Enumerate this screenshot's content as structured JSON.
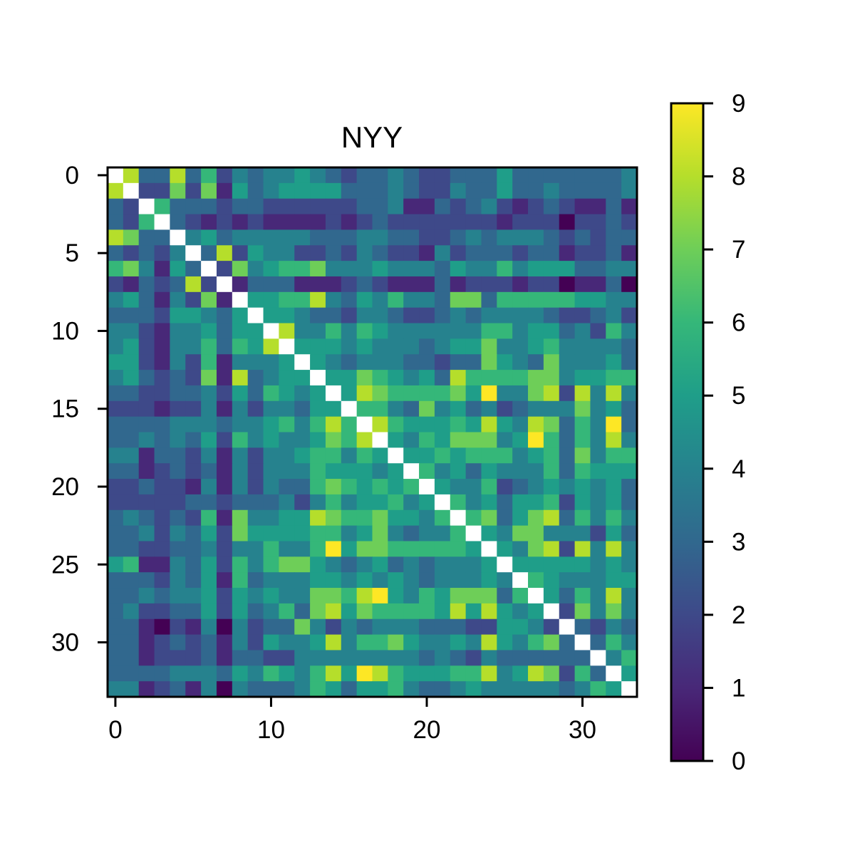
{
  "chart_data": {
    "type": "heatmap",
    "title": "NYY",
    "xlabel": "",
    "ylabel": "",
    "n": 34,
    "diagonal": "blank",
    "x_ticks": [
      0,
      10,
      20,
      30
    ],
    "y_ticks": [
      0,
      5,
      10,
      15,
      20,
      25,
      30
    ],
    "colorbar": {
      "colormap": "viridis",
      "vmin": 0,
      "vmax": 9,
      "ticks": [
        0,
        1,
        2,
        3,
        4,
        5,
        6,
        7,
        8,
        9
      ]
    },
    "rows": [
      [
        null,
        8,
        3,
        3,
        8,
        3,
        6,
        2,
        4,
        3,
        4,
        4,
        5,
        4,
        3,
        2,
        3,
        3,
        4,
        3,
        2,
        2,
        3,
        3,
        3,
        5,
        3,
        3,
        3,
        3,
        3,
        3,
        3,
        4
      ],
      [
        8,
        null,
        2,
        2,
        7,
        2,
        7,
        1,
        5,
        3,
        4,
        5,
        5,
        5,
        5,
        3,
        3,
        3,
        4,
        3,
        2,
        2,
        4,
        3,
        3,
        5,
        3,
        3,
        4,
        3,
        3,
        3,
        3,
        4
      ],
      [
        3,
        2,
        null,
        6,
        3,
        3,
        3,
        2,
        3,
        3,
        2,
        2,
        2,
        2,
        2,
        2,
        3,
        3,
        4,
        1,
        1,
        3,
        2,
        3,
        4,
        2,
        1,
        2,
        3,
        2,
        1,
        1,
        3,
        1
      ],
      [
        3,
        2,
        6,
        null,
        3,
        2,
        1,
        2,
        1,
        2,
        1,
        1,
        1,
        1,
        2,
        1,
        2,
        3,
        2,
        2,
        2,
        2,
        2,
        2,
        2,
        1,
        2,
        2,
        2,
        0,
        2,
        2,
        3,
        2
      ],
      [
        8,
        7,
        3,
        3,
        null,
        4,
        5,
        3,
        4,
        4,
        4,
        4,
        4,
        3,
        3,
        3,
        4,
        4,
        3,
        3,
        2,
        2,
        3,
        4,
        3,
        4,
        4,
        4,
        3,
        2,
        3,
        2,
        3,
        3
      ],
      [
        3,
        2,
        3,
        2,
        4,
        null,
        3,
        8,
        2,
        5,
        4,
        4,
        2,
        2,
        3,
        2,
        4,
        3,
        2,
        2,
        1,
        4,
        2,
        3,
        3,
        3,
        2,
        3,
        3,
        1,
        2,
        2,
        3,
        1
      ],
      [
        6,
        7,
        4,
        1,
        5,
        3,
        null,
        2,
        7,
        4,
        5,
        6,
        6,
        7,
        4,
        4,
        4,
        5,
        4,
        4,
        4,
        3,
        5,
        4,
        4,
        6,
        4,
        5,
        5,
        5,
        3,
        3,
        4,
        4
      ],
      [
        2,
        1,
        3,
        2,
        3,
        8,
        2,
        null,
        1,
        3,
        3,
        3,
        1,
        1,
        1,
        2,
        3,
        2,
        1,
        1,
        1,
        3,
        1,
        2,
        2,
        2,
        1,
        2,
        2,
        0,
        1,
        1,
        3,
        0
      ],
      [
        4,
        5,
        3,
        1,
        4,
        2,
        7,
        1,
        null,
        5,
        5,
        6,
        6,
        8,
        4,
        3,
        5,
        4,
        6,
        4,
        4,
        3,
        7,
        7,
        3,
        6,
        6,
        6,
        6,
        6,
        5,
        5,
        4,
        4
      ],
      [
        3,
        3,
        3,
        2,
        5,
        5,
        4,
        3,
        5,
        null,
        5,
        5,
        4,
        3,
        3,
        2,
        4,
        4,
        3,
        2,
        2,
        3,
        4,
        3,
        4,
        4,
        4,
        4,
        3,
        2,
        2,
        3,
        4,
        2
      ],
      [
        4,
        4,
        2,
        1,
        4,
        4,
        5,
        3,
        5,
        5,
        null,
        8,
        4,
        4,
        6,
        4,
        6,
        5,
        4,
        4,
        4,
        4,
        4,
        4,
        6,
        6,
        4,
        5,
        5,
        3,
        4,
        2,
        6,
        4
      ],
      [
        4,
        5,
        2,
        1,
        4,
        4,
        6,
        3,
        6,
        5,
        8,
        null,
        5,
        5,
        5,
        4,
        5,
        4,
        4,
        4,
        3,
        4,
        5,
        5,
        7,
        4,
        4,
        5,
        6,
        4,
        4,
        4,
        4,
        3
      ],
      [
        5,
        5,
        2,
        1,
        4,
        2,
        6,
        1,
        4,
        4,
        4,
        5,
        null,
        5,
        4,
        3,
        4,
        4,
        4,
        3,
        3,
        2,
        3,
        3,
        7,
        5,
        4,
        3,
        7,
        4,
        4,
        4,
        5,
        3
      ],
      [
        4,
        5,
        3,
        2,
        3,
        2,
        7,
        1,
        8,
        3,
        4,
        5,
        5,
        null,
        5,
        5,
        7,
        6,
        5,
        4,
        5,
        3,
        8,
        6,
        6,
        6,
        6,
        7,
        7,
        4,
        5,
        5,
        6,
        6
      ],
      [
        3,
        3,
        2,
        2,
        3,
        3,
        4,
        2,
        5,
        3,
        6,
        5,
        4,
        5,
        null,
        5,
        8,
        7,
        6,
        6,
        6,
        6,
        7,
        5,
        9,
        4,
        4,
        7,
        8,
        2,
        8,
        4,
        8,
        4
      ],
      [
        2,
        2,
        2,
        1,
        2,
        2,
        4,
        1,
        4,
        2,
        4,
        4,
        3,
        5,
        5,
        null,
        6,
        6,
        4,
        3,
        7,
        4,
        5,
        3,
        4,
        2,
        3,
        4,
        4,
        4,
        7,
        4,
        5,
        3
      ],
      [
        3,
        3,
        3,
        3,
        4,
        4,
        4,
        3,
        4,
        4,
        5,
        6,
        4,
        6,
        8,
        6,
        null,
        8,
        6,
        5,
        5,
        5,
        6,
        5,
        8,
        5,
        4,
        8,
        7,
        3,
        6,
        4,
        9,
        3
      ],
      [
        3,
        3,
        4,
        3,
        4,
        3,
        5,
        2,
        6,
        4,
        5,
        4,
        4,
        5,
        7,
        6,
        8,
        null,
        5,
        4,
        6,
        5,
        7,
        7,
        7,
        4,
        5,
        9,
        6,
        3,
        6,
        4,
        8,
        4
      ],
      [
        4,
        4,
        1,
        3,
        3,
        2,
        4,
        1,
        4,
        2,
        4,
        4,
        5,
        6,
        6,
        4,
        6,
        5,
        null,
        5,
        5,
        6,
        5,
        6,
        6,
        6,
        4,
        5,
        6,
        3,
        7,
        4,
        6,
        6
      ],
      [
        3,
        3,
        1,
        2,
        3,
        2,
        3,
        1,
        4,
        2,
        4,
        4,
        4,
        6,
        5,
        5,
        5,
        4,
        5,
        null,
        6,
        4,
        5,
        3,
        5,
        4,
        4,
        4,
        6,
        3,
        6,
        5,
        5,
        5
      ],
      [
        2,
        2,
        3,
        2,
        2,
        1,
        4,
        1,
        4,
        2,
        4,
        3,
        3,
        6,
        7,
        6,
        5,
        6,
        5,
        6,
        null,
        5,
        4,
        4,
        6,
        2,
        3,
        4,
        5,
        4,
        5,
        4,
        5,
        3
      ],
      [
        2,
        2,
        2,
        2,
        2,
        3,
        3,
        2,
        3,
        3,
        3,
        4,
        2,
        4,
        6,
        4,
        5,
        5,
        6,
        4,
        5,
        null,
        6,
        4,
        5,
        3,
        5,
        5,
        6,
        2,
        5,
        4,
        5,
        3
      ],
      [
        3,
        4,
        3,
        2,
        3,
        2,
        6,
        1,
        7,
        4,
        4,
        5,
        5,
        8,
        7,
        6,
        6,
        7,
        5,
        5,
        4,
        6,
        null,
        6,
        7,
        3,
        5,
        7,
        8,
        3,
        6,
        4,
        6,
        4
      ],
      [
        3,
        3,
        4,
        2,
        4,
        3,
        5,
        2,
        7,
        5,
        5,
        5,
        5,
        6,
        6,
        4,
        5,
        7,
        4,
        3,
        4,
        4,
        6,
        null,
        5,
        4,
        7,
        7,
        4,
        4,
        4,
        2,
        5,
        3
      ],
      [
        3,
        3,
        2,
        2,
        3,
        3,
        4,
        2,
        4,
        4,
        6,
        4,
        4,
        6,
        9,
        5,
        7,
        7,
        6,
        6,
        6,
        6,
        6,
        5,
        null,
        5,
        4,
        7,
        8,
        2,
        8,
        4,
        8,
        4
      ],
      [
        5,
        6,
        1,
        1,
        4,
        3,
        5,
        2,
        6,
        4,
        6,
        7,
        7,
        5,
        4,
        3,
        4,
        5,
        3,
        4,
        3,
        4,
        4,
        4,
        5,
        null,
        5,
        5,
        5,
        5,
        5,
        4,
        5,
        4
      ],
      [
        3,
        3,
        3,
        2,
        4,
        3,
        5,
        1,
        6,
        3,
        4,
        4,
        4,
        5,
        5,
        4,
        5,
        4,
        5,
        4,
        3,
        4,
        4,
        4,
        5,
        4,
        null,
        6,
        5,
        4,
        4,
        4,
        5,
        5
      ],
      [
        3,
        3,
        4,
        3,
        4,
        4,
        5,
        2,
        5,
        4,
        5,
        4,
        4,
        7,
        7,
        6,
        8,
        9,
        5,
        4,
        6,
        5,
        7,
        7,
        7,
        3,
        6,
        null,
        5,
        3,
        6,
        4,
        8,
        4
      ],
      [
        3,
        4,
        2,
        2,
        3,
        3,
        5,
        2,
        5,
        3,
        4,
        6,
        3,
        7,
        8,
        5,
        7,
        6,
        6,
        6,
        6,
        5,
        8,
        5,
        8,
        5,
        4,
        5,
        null,
        2,
        7,
        4,
        7,
        4
      ],
      [
        3,
        3,
        1,
        0,
        2,
        1,
        4,
        0,
        4,
        2,
        3,
        3,
        7,
        4,
        2,
        4,
        3,
        4,
        4,
        4,
        3,
        3,
        3,
        2,
        2,
        5,
        5,
        4,
        2,
        null,
        3,
        2,
        4,
        3
      ],
      [
        3,
        3,
        1,
        2,
        3,
        2,
        3,
        1,
        4,
        2,
        5,
        4,
        4,
        5,
        8,
        4,
        6,
        6,
        7,
        5,
        4,
        4,
        5,
        4,
        8,
        5,
        4,
        6,
        7,
        3,
        null,
        3,
        6,
        4
      ],
      [
        3,
        3,
        1,
        2,
        2,
        2,
        3,
        1,
        3,
        3,
        2,
        2,
        4,
        4,
        4,
        4,
        4,
        4,
        4,
        4,
        3,
        4,
        3,
        2,
        4,
        3,
        3,
        3,
        3,
        3,
        3,
        null,
        4,
        6
      ],
      [
        3,
        3,
        3,
        3,
        4,
        4,
        4,
        3,
        5,
        4,
        6,
        5,
        4,
        6,
        8,
        5,
        9,
        8,
        6,
        5,
        5,
        5,
        6,
        6,
        8,
        4,
        5,
        8,
        7,
        2,
        6,
        3,
        null,
        5
      ],
      [
        4,
        4,
        1,
        2,
        3,
        1,
        4,
        0,
        4,
        3,
        3,
        3,
        4,
        6,
        5,
        3,
        5,
        5,
        6,
        4,
        3,
        3,
        4,
        5,
        4,
        4,
        4,
        4,
        4,
        3,
        4,
        6,
        5,
        null
      ]
    ]
  }
}
